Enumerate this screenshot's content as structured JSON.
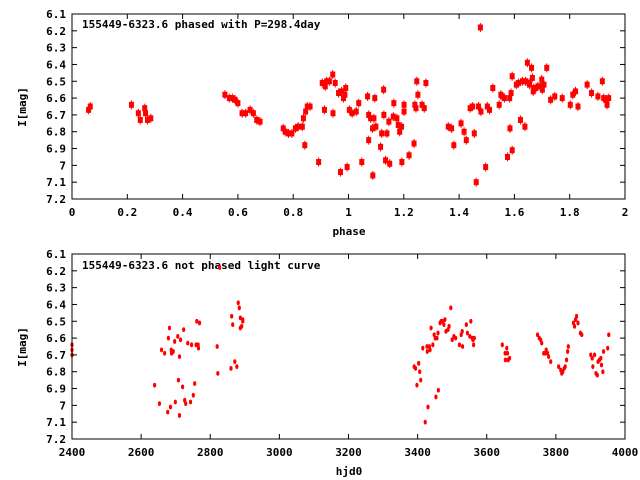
{
  "chart_data": [
    {
      "type": "scatter",
      "title": "155449-6323.6 phased with P=298.4day",
      "xlabel": "phase",
      "ylabel": "I[mag]",
      "xlim": [
        0,
        2
      ],
      "ylim": [
        6.1,
        7.2
      ],
      "y_inverted": true,
      "grid": false,
      "legend": "top-left",
      "xticks": [
        "0",
        "0.2",
        "0.4",
        "0.6",
        "0.8",
        "1",
        "1.2",
        "1.4",
        "1.6",
        "1.8",
        "2"
      ],
      "xtick_values": [
        0,
        0.2,
        0.4,
        0.6,
        0.8,
        1,
        1.2,
        1.4,
        1.6,
        1.8,
        2
      ],
      "yticks": [
        "6.1",
        "6.2",
        "6.3",
        "6.4",
        "6.5",
        "6.6",
        "6.7",
        "6.8",
        "6.9",
        "7",
        "7.1",
        "7.2"
      ],
      "ytick_values": [
        6.1,
        6.2,
        6.3,
        6.4,
        6.5,
        6.6,
        6.7,
        6.8,
        6.9,
        7.0,
        7.1,
        7.2
      ],
      "color": "#ff0000",
      "points": [
        [
          0.06,
          6.67
        ],
        [
          0.066,
          6.65
        ],
        [
          0.215,
          6.64
        ],
        [
          0.24,
          6.69
        ],
        [
          0.247,
          6.73
        ],
        [
          0.263,
          6.66
        ],
        [
          0.266,
          6.69
        ],
        [
          0.273,
          6.73
        ],
        [
          0.285,
          6.72
        ],
        [
          0.553,
          6.58
        ],
        [
          0.569,
          6.6
        ],
        [
          0.58,
          6.6
        ],
        [
          0.59,
          6.61
        ],
        [
          0.6,
          6.63
        ],
        [
          0.615,
          6.69
        ],
        [
          0.628,
          6.69
        ],
        [
          0.644,
          6.67
        ],
        [
          0.656,
          6.69
        ],
        [
          0.668,
          6.73
        ],
        [
          0.68,
          6.74
        ],
        [
          0.764,
          6.78
        ],
        [
          0.771,
          6.8
        ],
        [
          0.783,
          6.81
        ],
        [
          0.795,
          6.81
        ],
        [
          0.808,
          6.78
        ],
        [
          0.818,
          6.77
        ],
        [
          0.833,
          6.77
        ],
        [
          0.837,
          6.72
        ],
        [
          0.842,
          6.88
        ],
        [
          0.845,
          6.68
        ],
        [
          0.851,
          6.65
        ],
        [
          0.861,
          6.65
        ],
        [
          0.892,
          6.98
        ],
        [
          0.905,
          6.51
        ],
        [
          0.913,
          6.67
        ],
        [
          0.916,
          6.53
        ],
        [
          0.921,
          6.5
        ],
        [
          0.931,
          6.5
        ],
        [
          0.943,
          6.46
        ],
        [
          0.944,
          6.69
        ],
        [
          0.952,
          6.51
        ],
        [
          0.964,
          6.57
        ],
        [
          0.971,
          7.04
        ],
        [
          0.975,
          6.56
        ],
        [
          0.982,
          6.6
        ],
        [
          0.987,
          6.58
        ],
        [
          0.99,
          6.54
        ],
        [
          0.995,
          7.01
        ],
        [
          1.003,
          6.67
        ],
        [
          1.013,
          6.69
        ],
        [
          1.028,
          6.68
        ],
        [
          1.037,
          6.63
        ],
        [
          1.048,
          6.98
        ],
        [
          1.069,
          6.59
        ],
        [
          1.073,
          6.85
        ],
        [
          1.073,
          6.7
        ],
        [
          1.08,
          6.72
        ],
        [
          1.087,
          6.78
        ],
        [
          1.088,
          7.06
        ],
        [
          1.092,
          6.72
        ],
        [
          1.095,
          6.6
        ],
        [
          1.099,
          6.77
        ],
        [
          1.116,
          6.89
        ],
        [
          1.12,
          6.81
        ],
        [
          1.127,
          6.55
        ],
        [
          1.128,
          6.7
        ],
        [
          1.134,
          6.97
        ],
        [
          1.139,
          6.81
        ],
        [
          1.149,
          6.99
        ],
        [
          1.146,
          6.74
        ],
        [
          1.162,
          6.71
        ],
        [
          1.164,
          6.63
        ],
        [
          1.175,
          6.72
        ],
        [
          1.18,
          6.76
        ],
        [
          1.185,
          6.8
        ],
        [
          1.192,
          6.77
        ],
        [
          1.193,
          6.98
        ],
        [
          1.201,
          6.64
        ],
        [
          1.201,
          6.68
        ],
        [
          1.219,
          6.94
        ],
        [
          1.237,
          6.87
        ],
        [
          1.24,
          6.64
        ],
        [
          1.244,
          6.66
        ],
        [
          1.247,
          6.5
        ],
        [
          1.251,
          6.58
        ],
        [
          1.266,
          6.64
        ],
        [
          1.274,
          6.66
        ],
        [
          1.28,
          6.51
        ],
        [
          1.361,
          6.77
        ],
        [
          1.373,
          6.78
        ],
        [
          1.381,
          6.88
        ],
        [
          1.407,
          6.75
        ],
        [
          1.418,
          6.8
        ],
        [
          1.426,
          6.85
        ],
        [
          1.44,
          6.66
        ],
        [
          1.449,
          6.65
        ],
        [
          1.455,
          6.81
        ],
        [
          1.462,
          7.1
        ],
        [
          1.47,
          6.65
        ],
        [
          1.477,
          6.18
        ],
        [
          1.479,
          6.68
        ],
        [
          1.496,
          7.01
        ],
        [
          1.502,
          6.65
        ],
        [
          1.51,
          6.67
        ],
        [
          1.522,
          6.54
        ],
        [
          1.545,
          6.64
        ],
        [
          1.551,
          6.58
        ],
        [
          1.556,
          6.59
        ],
        [
          1.564,
          6.6
        ],
        [
          1.575,
          6.95
        ],
        [
          1.583,
          6.6
        ],
        [
          1.584,
          6.78
        ],
        [
          1.588,
          6.57
        ],
        [
          1.592,
          6.47
        ],
        [
          1.592,
          6.91
        ],
        [
          1.607,
          6.52
        ],
        [
          1.615,
          6.51
        ],
        [
          1.622,
          6.73
        ],
        [
          1.629,
          6.5
        ],
        [
          1.638,
          6.77
        ],
        [
          1.64,
          6.5
        ],
        [
          1.647,
          6.39
        ],
        [
          1.653,
          6.51
        ],
        [
          1.655,
          6.52
        ],
        [
          1.662,
          6.42
        ],
        [
          1.665,
          6.48
        ],
        [
          1.668,
          6.56
        ],
        [
          1.67,
          6.54
        ],
        [
          1.678,
          6.54
        ],
        [
          1.685,
          6.53
        ],
        [
          1.695,
          6.53
        ],
        [
          1.699,
          6.49
        ],
        [
          1.701,
          6.55
        ],
        [
          1.707,
          6.52
        ],
        [
          1.717,
          6.42
        ],
        [
          1.731,
          6.61
        ],
        [
          1.746,
          6.59
        ],
        [
          1.773,
          6.6
        ],
        [
          1.802,
          6.64
        ],
        [
          1.811,
          6.58
        ],
        [
          1.821,
          6.56
        ],
        [
          1.83,
          6.65
        ],
        [
          1.863,
          6.52
        ],
        [
          1.879,
          6.57
        ],
        [
          1.902,
          6.59
        ],
        [
          1.918,
          6.5
        ],
        [
          1.923,
          6.6
        ],
        [
          1.93,
          6.61
        ],
        [
          1.935,
          6.64
        ],
        [
          1.941,
          6.6
        ]
      ]
    },
    {
      "type": "scatter",
      "title": "155449-6323.6 not phased light curve",
      "xlabel": "hjd0",
      "ylabel": "I[mag]",
      "xlim": [
        2400,
        4000
      ],
      "ylim": [
        6.1,
        7.2
      ],
      "y_inverted": true,
      "grid": false,
      "legend": "top-left",
      "xticks": [
        "2400",
        "2600",
        "2800",
        "3000",
        "3200",
        "3400",
        "3600",
        "3800",
        "4000"
      ],
      "xtick_values": [
        2400,
        2600,
        2800,
        3000,
        3200,
        3400,
        3600,
        3800,
        4000
      ],
      "yticks": [
        "6.1",
        "6.2",
        "6.3",
        "6.4",
        "6.5",
        "6.6",
        "6.7",
        "6.8",
        "6.9",
        "7",
        "7.1",
        "7.2"
      ],
      "ytick_values": [
        6.1,
        6.2,
        6.3,
        6.4,
        6.5,
        6.6,
        6.7,
        6.8,
        6.9,
        7.0,
        7.1,
        7.2
      ],
      "color": "#ff0000",
      "points": [
        [
          2400,
          6.64
        ],
        [
          2400,
          6.67
        ],
        [
          2400,
          6.7
        ],
        [
          2639,
          6.88
        ],
        [
          2653,
          6.99
        ],
        [
          2659,
          6.67
        ],
        [
          2668,
          6.69
        ],
        [
          2677,
          7.04
        ],
        [
          2679,
          6.6
        ],
        [
          2682,
          6.54
        ],
        [
          2685,
          7.01
        ],
        [
          2687,
          6.67
        ],
        [
          2688,
          6.69
        ],
        [
          2693,
          6.68
        ],
        [
          2697,
          6.62
        ],
        [
          2699,
          6.98
        ],
        [
          2706,
          6.59
        ],
        [
          2708,
          6.85
        ],
        [
          2711,
          6.71
        ],
        [
          2711,
          7.06
        ],
        [
          2714,
          6.61
        ],
        [
          2720,
          6.89
        ],
        [
          2723,
          6.55
        ],
        [
          2726,
          6.97
        ],
        [
          2729,
          6.99
        ],
        [
          2735,
          6.63
        ],
        [
          2743,
          6.98
        ],
        [
          2746,
          6.64
        ],
        [
          2751,
          6.94
        ],
        [
          2755,
          6.87
        ],
        [
          2759,
          6.64
        ],
        [
          2761,
          6.5
        ],
        [
          2765,
          6.64
        ],
        [
          2766,
          6.66
        ],
        [
          2769,
          6.51
        ],
        [
          2820,
          6.65
        ],
        [
          2822,
          6.81
        ],
        [
          2827,
          6.18
        ],
        [
          2860,
          6.78
        ],
        [
          2862,
          6.47
        ],
        [
          2865,
          6.52
        ],
        [
          2871,
          6.74
        ],
        [
          2877,
          6.77
        ],
        [
          2881,
          6.39
        ],
        [
          2884,
          6.42
        ],
        [
          2887,
          6.48
        ],
        [
          2887,
          6.54
        ],
        [
          2891,
          6.53
        ],
        [
          2894,
          6.49
        ],
        [
          2894,
          6.5
        ],
        [
          3390,
          6.77
        ],
        [
          3394,
          6.78
        ],
        [
          3398,
          6.88
        ],
        [
          3403,
          6.75
        ],
        [
          3406,
          6.8
        ],
        [
          3409,
          6.85
        ],
        [
          3415,
          6.66
        ],
        [
          3422,
          7.1
        ],
        [
          3427,
          6.65
        ],
        [
          3428,
          6.68
        ],
        [
          3430,
          7.01
        ],
        [
          3434,
          6.65
        ],
        [
          3436,
          6.67
        ],
        [
          3439,
          6.54
        ],
        [
          3444,
          6.64
        ],
        [
          3448,
          6.58
        ],
        [
          3451,
          6.6
        ],
        [
          3453,
          6.95
        ],
        [
          3456,
          6.6
        ],
        [
          3459,
          6.57
        ],
        [
          3460,
          6.91
        ],
        [
          3465,
          6.51
        ],
        [
          3468,
          6.5
        ],
        [
          3472,
          6.5
        ],
        [
          3476,
          6.52
        ],
        [
          3479,
          6.49
        ],
        [
          3482,
          6.56
        ],
        [
          3488,
          6.55
        ],
        [
          3491,
          6.53
        ],
        [
          3496,
          6.42
        ],
        [
          3500,
          6.61
        ],
        [
          3505,
          6.59
        ],
        [
          3510,
          6.6
        ],
        [
          3521,
          6.64
        ],
        [
          3526,
          6.58
        ],
        [
          3529,
          6.56
        ],
        [
          3530,
          6.65
        ],
        [
          3541,
          6.52
        ],
        [
          3544,
          6.57
        ],
        [
          3551,
          6.59
        ],
        [
          3554,
          6.5
        ],
        [
          3558,
          6.6
        ],
        [
          3560,
          6.61
        ],
        [
          3562,
          6.64
        ],
        [
          3564,
          6.6
        ],
        [
          3645,
          6.64
        ],
        [
          3653,
          6.69
        ],
        [
          3654,
          6.73
        ],
        [
          3658,
          6.66
        ],
        [
          3660,
          6.69
        ],
        [
          3662,
          6.73
        ],
        [
          3666,
          6.72
        ],
        [
          3747,
          6.58
        ],
        [
          3752,
          6.6
        ],
        [
          3756,
          6.61
        ],
        [
          3759,
          6.63
        ],
        [
          3765,
          6.69
        ],
        [
          3769,
          6.69
        ],
        [
          3772,
          6.67
        ],
        [
          3776,
          6.69
        ],
        [
          3779,
          6.71
        ],
        [
          3785,
          6.74
        ],
        [
          3808,
          6.77
        ],
        [
          3814,
          6.79
        ],
        [
          3817,
          6.81
        ],
        [
          3820,
          6.8
        ],
        [
          3824,
          6.78
        ],
        [
          3827,
          6.77
        ],
        [
          3831,
          6.73
        ],
        [
          3834,
          6.68
        ],
        [
          3836,
          6.65
        ],
        [
          3851,
          6.51
        ],
        [
          3854,
          6.53
        ],
        [
          3857,
          6.49
        ],
        [
          3860,
          6.47
        ],
        [
          3864,
          6.51
        ],
        [
          3871,
          6.57
        ],
        [
          3875,
          6.58
        ],
        [
          3901,
          6.7
        ],
        [
          3905,
          6.72
        ],
        [
          3907,
          6.77
        ],
        [
          3912,
          6.7
        ],
        [
          3916,
          6.81
        ],
        [
          3920,
          6.82
        ],
        [
          3922,
          6.74
        ],
        [
          3926,
          6.73
        ],
        [
          3930,
          6.72
        ],
        [
          3932,
          6.76
        ],
        [
          3936,
          6.8
        ],
        [
          3938,
          6.68
        ],
        [
          3950,
          6.66
        ],
        [
          3953,
          6.58
        ]
      ]
    }
  ]
}
